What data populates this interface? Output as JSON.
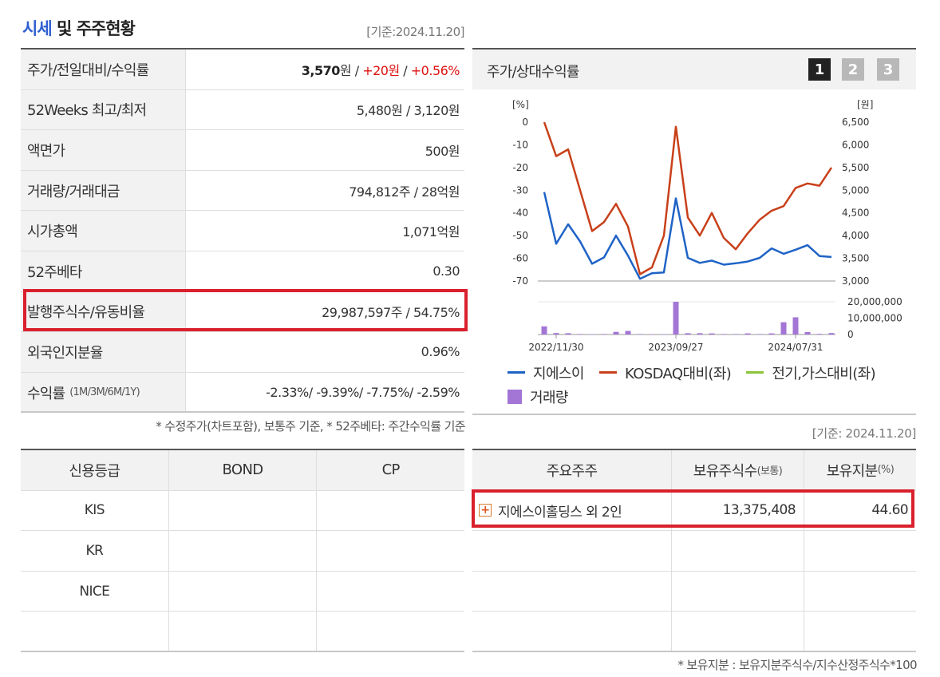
{
  "title": {
    "accent": "시세",
    "rest": " 및 주주현황"
  },
  "as_of_top": "[기준:2024.11.20]",
  "stats": [
    {
      "label": "주가/전일대비/수익률",
      "value_parts": [
        "3,570",
        "원 / ",
        "+20원",
        " / ",
        "+0.56%"
      ]
    },
    {
      "label": "52Weeks 최고/최저",
      "value": "5,480원 / 3,120원"
    },
    {
      "label": "액면가",
      "value": "500원"
    },
    {
      "label": "거래량/거래대금",
      "value": "794,812주 / 28억원"
    },
    {
      "label": "시가총액",
      "value": "1,071억원"
    },
    {
      "label": "52주베타",
      "value": "0.30"
    },
    {
      "label": "발행주식수/유동비율",
      "value": "29,987,597주 / 54.75%"
    },
    {
      "label": "외국인지분율",
      "value": "0.96%"
    },
    {
      "label": "수익률",
      "label_small": "(1M/3M/6M/1Y)",
      "value": "-2.33%/ -9.39%/ -7.75%/ -2.59%"
    }
  ],
  "note_left": "* 수정주가(차트포함), 보통주 기준, * 52주베타: 주간수익률 기준",
  "credit": {
    "headers": [
      "신용등급",
      "BOND",
      "CP"
    ],
    "rows": [
      [
        "KIS",
        "",
        ""
      ],
      [
        "KR",
        "",
        ""
      ],
      [
        "NICE",
        "",
        ""
      ],
      [
        "",
        "",
        ""
      ]
    ]
  },
  "chart_panel": {
    "title": "주가/상대수익률",
    "buttons": [
      "1",
      "2",
      "3"
    ]
  },
  "colors": {
    "stock": "#1f63c6",
    "kosdaq": "#c8401a",
    "sector": "#8cc43a",
    "volume": "#a376d6",
    "highlight": "#d9202c"
  },
  "chart_data": {
    "type": "line",
    "left_axis_unit": "[%]",
    "right_axis_unit": "[원]",
    "left_ticks": [
      "0",
      "-10",
      "-20",
      "-30",
      "-40",
      "-50",
      "-60",
      "-70"
    ],
    "left_ylim": [
      -70,
      0
    ],
    "right_ticks": [
      "6,500",
      "6,000",
      "5,500",
      "5,000",
      "4,500",
      "4,000",
      "3,500",
      "3,000"
    ],
    "right_ylim": [
      3000,
      6500
    ],
    "volume_ticks": [
      "20,000,000",
      "10,000,000",
      "0"
    ],
    "volume_ylim": [
      0,
      20000000
    ],
    "x_tick_labels": [
      {
        "label": "2022/11/30",
        "index": 1
      },
      {
        "label": "2023/09/27",
        "index": 11
      },
      {
        "label": "2024/07/31",
        "index": 21
      }
    ],
    "series": [
      {
        "name": "지에스이",
        "axis": "right",
        "values": [
          4960,
          3820,
          4250,
          3870,
          3380,
          3520,
          4000,
          3560,
          3050,
          3170,
          3190,
          4820,
          3510,
          3400,
          3450,
          3360,
          3390,
          3430,
          3510,
          3720,
          3600,
          3690,
          3790,
          3550,
          3530
        ]
      },
      {
        "name": "KOSDAQ대비(좌)",
        "axis": "left",
        "values": [
          0,
          -15,
          -12,
          -30,
          -48,
          -44,
          -36,
          -46,
          -67,
          -64,
          -50,
          -2,
          -42,
          -50,
          -40,
          -51,
          -56,
          -49,
          -43,
          -39,
          -37,
          -29,
          -27,
          -28,
          -20
        ]
      },
      {
        "name": "전기,가스대비(좌)",
        "axis": "left",
        "values": []
      }
    ],
    "volume": {
      "name": "거래량",
      "values": [
        5000000,
        900000,
        800000,
        300000,
        200000,
        300000,
        1600000,
        2200000,
        300000,
        200000,
        200000,
        20000000,
        800000,
        800000,
        700000,
        300000,
        300000,
        700000,
        300000,
        700000,
        7500000,
        10500000,
        1500000,
        400000,
        900000
      ]
    }
  },
  "as_of_right": "[기준: 2024.11.20]",
  "holders": {
    "headers": {
      "name": "주요주주",
      "shares": "보유주식수",
      "shares_small": "(보통)",
      "pct": "보유지분",
      "pct_small": "(%)"
    },
    "rows": [
      {
        "name": "지에스이홀딩스 외 2인",
        "shares": "13,375,408",
        "pct": "44.60"
      }
    ]
  },
  "note_right": "* 보유지분 : 보유지분주식수/지수산정주식수*100"
}
